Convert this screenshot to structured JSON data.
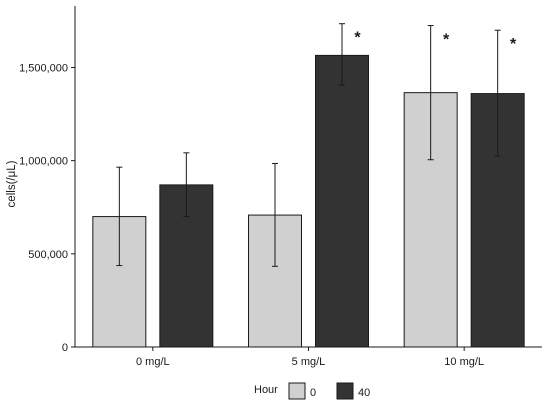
{
  "chart_data": {
    "type": "bar",
    "categories": [
      "0 mg/L",
      "5 mg/L",
      "10 mg/L"
    ],
    "series": [
      {
        "name": "0",
        "color": "#d0d0d0",
        "values": [
          700000,
          708000,
          1365000
        ],
        "error_low": [
          437000,
          433000,
          1005000
        ],
        "error_high": [
          965000,
          985000,
          1725000
        ],
        "annotations": [
          "",
          "",
          "*"
        ]
      },
      {
        "name": "40",
        "color": "#333333",
        "values": [
          870000,
          1565000,
          1360000
        ],
        "error_low": [
          700000,
          1405000,
          1025000
        ],
        "error_high": [
          1042000,
          1735000,
          1700000
        ],
        "annotations": [
          "",
          "*",
          "*"
        ]
      }
    ],
    "title": "",
    "xlabel": "",
    "ylabel": "cells(/μL)",
    "ylim": [
      0,
      1830000
    ],
    "yticks": [
      0,
      500000,
      1000000,
      1500000
    ],
    "ytick_labels": [
      "0",
      "500,000",
      "1,000,000",
      "1,500,000"
    ],
    "grid": false,
    "legend": {
      "title": "Hour",
      "placement": "bottom"
    }
  }
}
